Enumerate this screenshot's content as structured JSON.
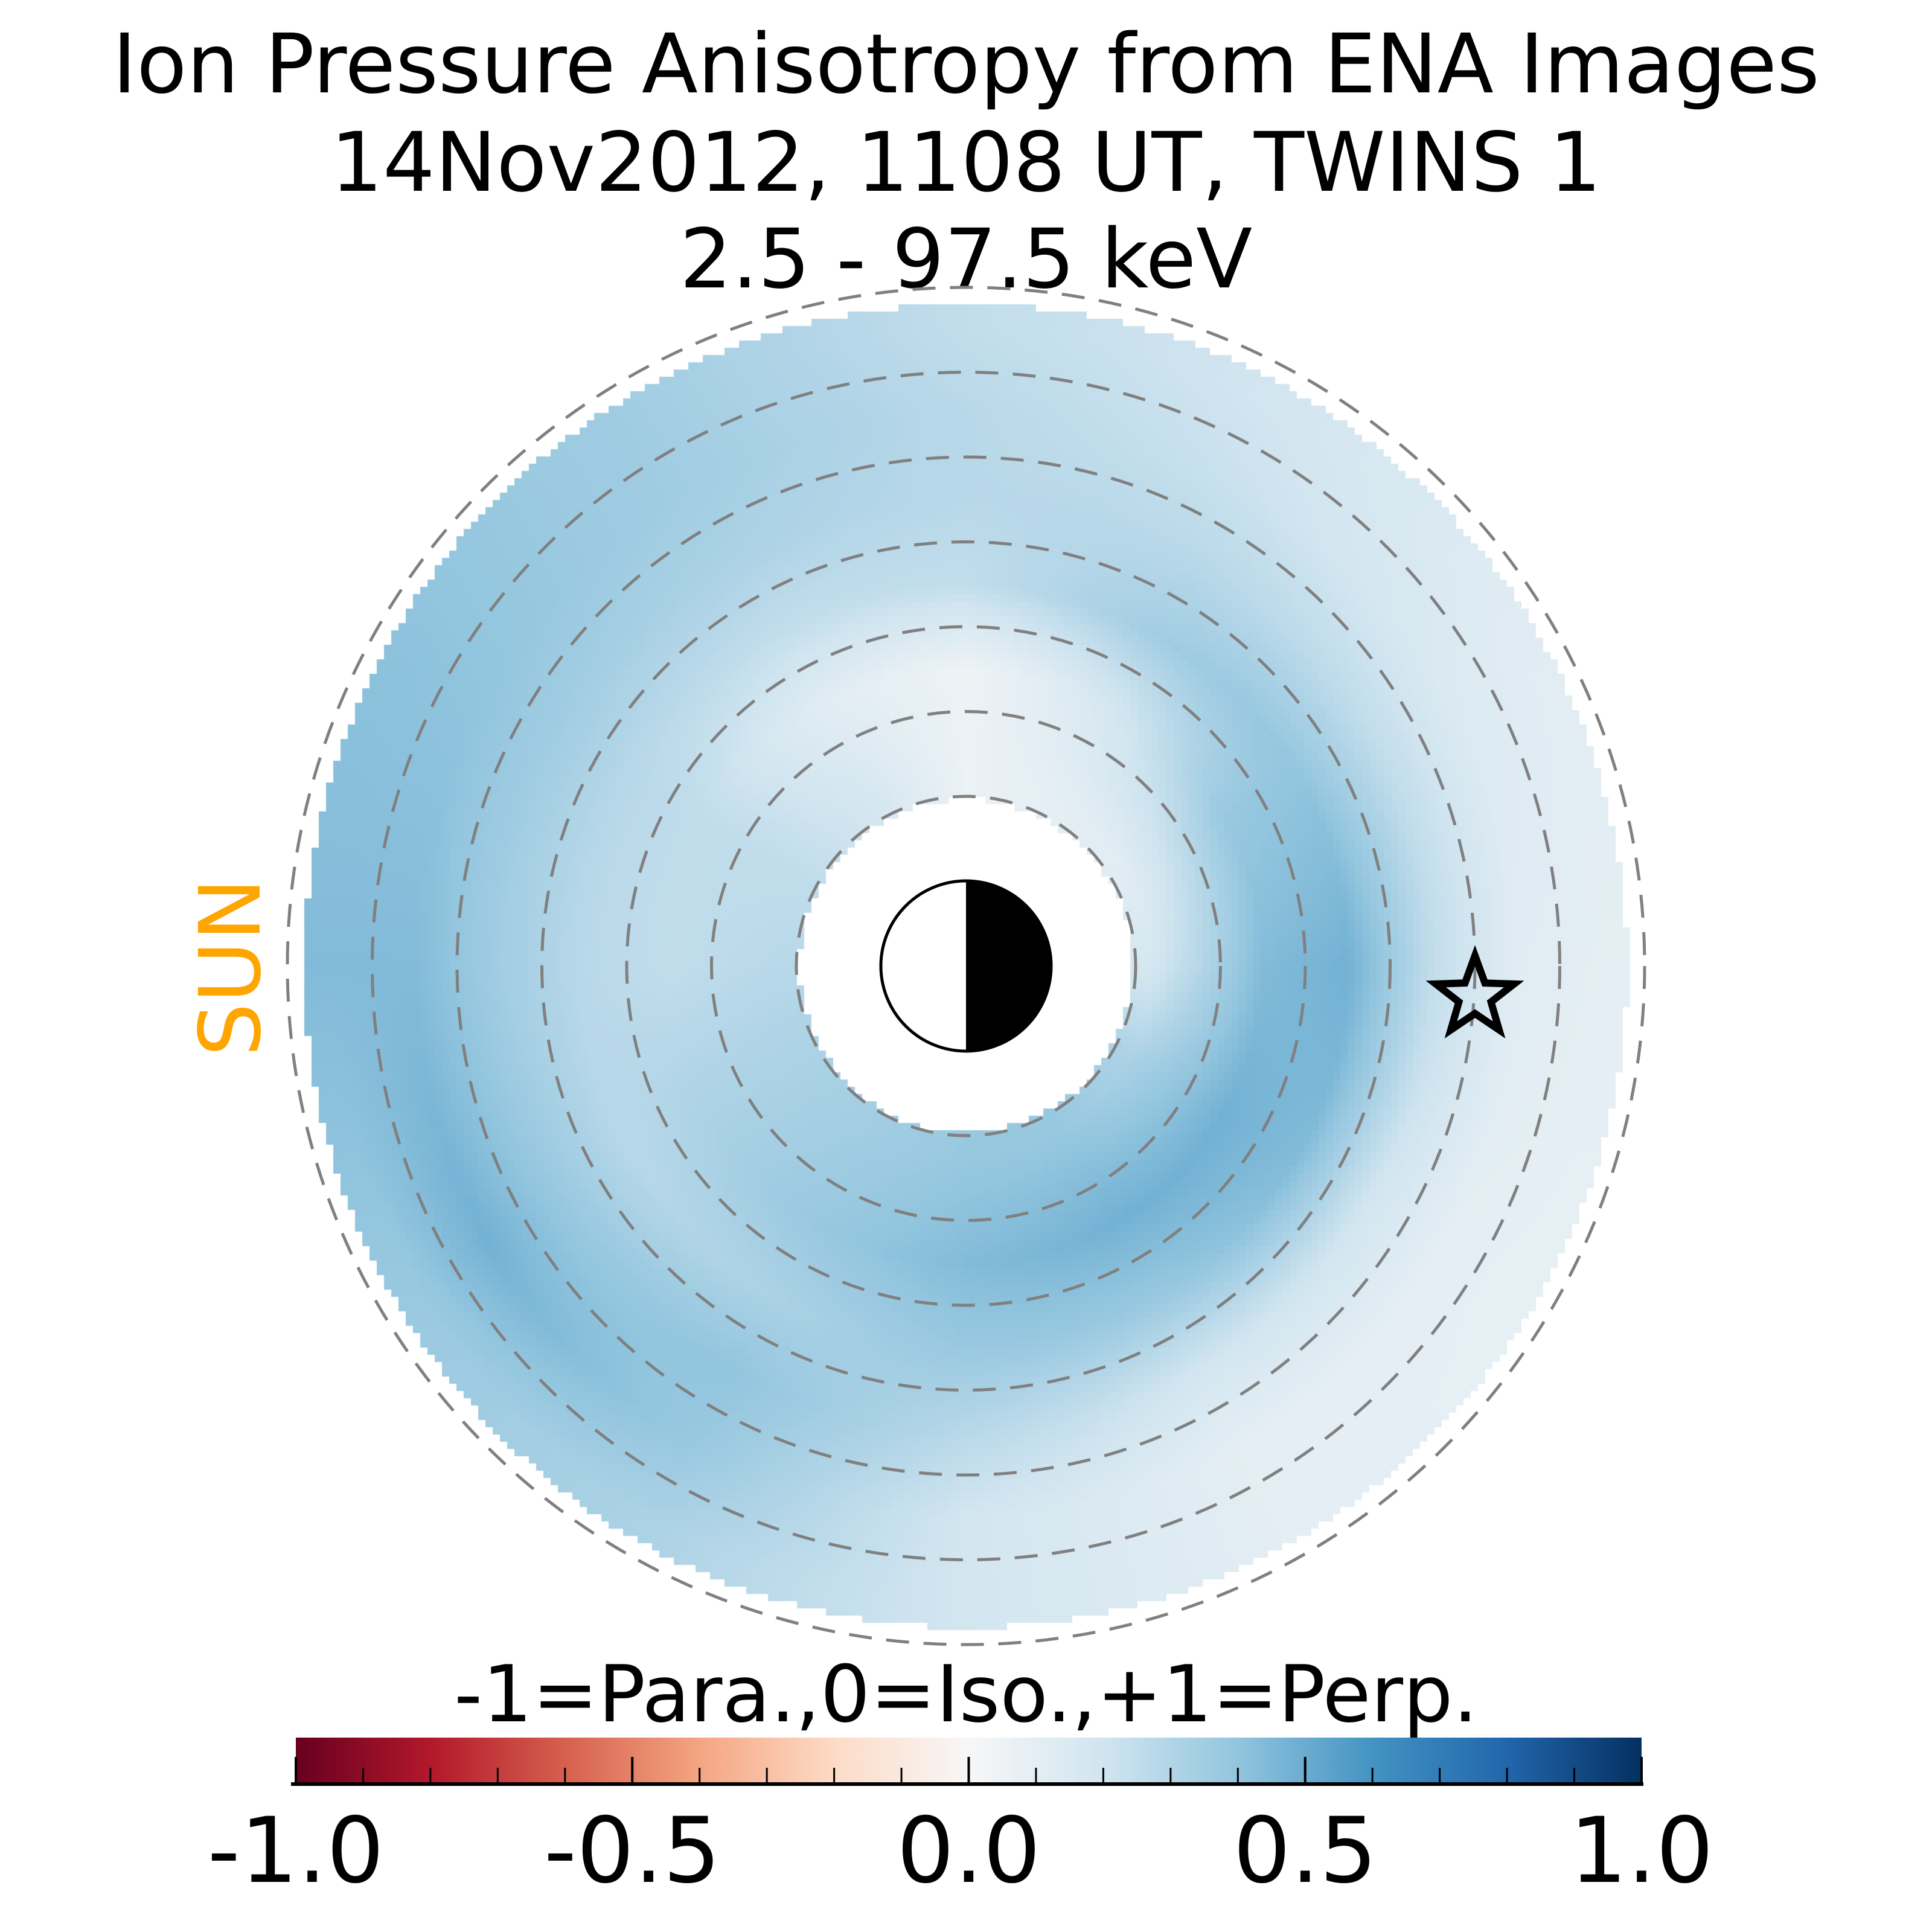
{
  "chart_data": {
    "type": "heatmap",
    "title": [
      "Ion Pressure Anisotropy from  ENA Images",
      "14Nov2012, 1108 UT,  TWINS 1",
      "2.5 - 97.5 keV"
    ],
    "projection": "polar equatorial-plane map, Sun to the left",
    "sun_label": "SUN",
    "radial_circles_RE": [
      2,
      3,
      4,
      5,
      6,
      7,
      8
    ],
    "r_range_RE": [
      2,
      7.8
    ],
    "spacecraft_marker": {
      "symbol": "star",
      "x_RE": 6.0,
      "y_RE": 0.35
    },
    "grid": {
      "angle_deg": [
        0,
        30,
        60,
        90,
        120,
        150,
        180,
        210,
        240,
        270,
        300,
        330
      ],
      "angle_reference": "0 = anti-sunward (right), counterclockwise",
      "r_RE": [
        2.2,
        3.5,
        4.5,
        5.5,
        6.5,
        7.5
      ],
      "values": [
        [
          0.18,
          0.12,
          0.1,
          0.06,
          0.18,
          0.25,
          0.28,
          0.32,
          0.35,
          0.38,
          0.38,
          0.32
        ],
        [
          0.44,
          0.38,
          0.18,
          0.05,
          0.12,
          0.25,
          0.25,
          0.32,
          0.38,
          0.44,
          0.48,
          0.48
        ],
        [
          0.48,
          0.4,
          0.35,
          0.25,
          0.25,
          0.28,
          0.28,
          0.28,
          0.32,
          0.38,
          0.38,
          0.44
        ],
        [
          0.25,
          0.25,
          0.28,
          0.28,
          0.32,
          0.35,
          0.35,
          0.38,
          0.4,
          0.28,
          0.19,
          0.19
        ],
        [
          0.12,
          0.15,
          0.22,
          0.28,
          0.35,
          0.4,
          0.44,
          0.48,
          0.38,
          0.19,
          0.1,
          0.1
        ],
        [
          0.1,
          0.12,
          0.19,
          0.25,
          0.35,
          0.41,
          0.44,
          0.38,
          0.32,
          0.19,
          0.1,
          0.09
        ]
      ]
    },
    "colorbar": {
      "label": "-1=Para.,0=Iso.,+1=Perp.",
      "range": [
        -1.0,
        1.0
      ],
      "tick_values": [
        -1.0,
        -0.5,
        0.0,
        0.5,
        1.0
      ],
      "tick_labels": [
        "-1.0",
        "-0.5",
        "0.0",
        "0.5",
        "1.0"
      ],
      "minor_step": 0.1,
      "colormap": [
        "#67001f",
        "#b2182b",
        "#d6604d",
        "#f4a582",
        "#fddbc7",
        "#f7f7f7",
        "#d1e5f0",
        "#92c5de",
        "#4393c3",
        "#2166ac",
        "#053061"
      ]
    },
    "colors": {
      "sun": "#ffa500",
      "circles": "#808080"
    }
  }
}
